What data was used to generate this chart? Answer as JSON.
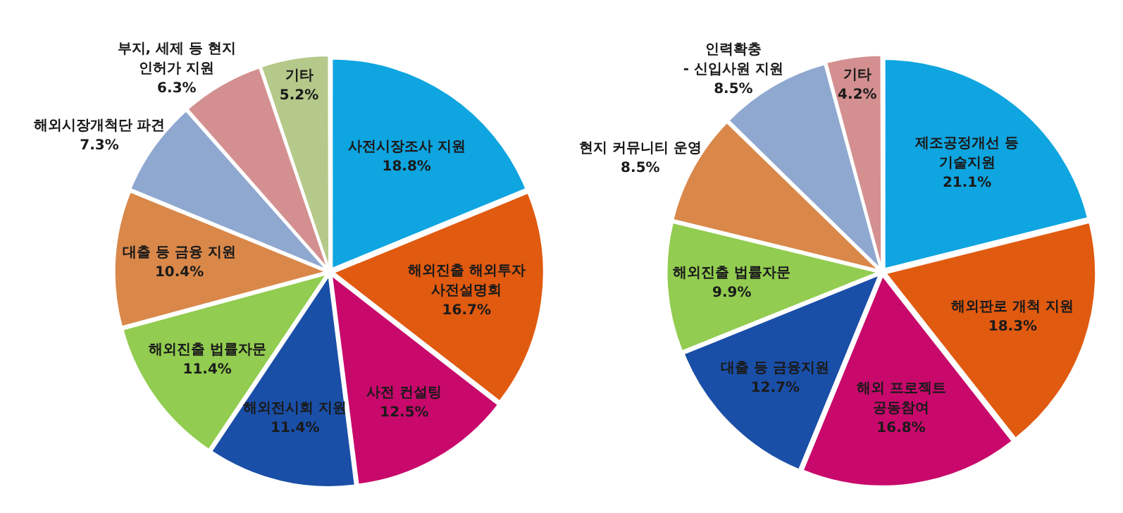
{
  "chart_data": [
    {
      "type": "pie",
      "categories": [
        "사전시장조사 지원",
        "해외진출 해외투자\n사전설명회",
        "사전 컨설팅",
        "해외전시회 지원",
        "해외진출 법률자문",
        "대출 등 금융 지원",
        "해외시장개척단 파견",
        "부지, 세제 등 현지\n인허가 지원",
        "기타"
      ],
      "values": [
        18.8,
        16.7,
        12.5,
        11.4,
        11.4,
        10.4,
        7.3,
        6.3,
        5.2
      ],
      "value_labels": [
        "18.8%",
        "16.7%",
        "12.5%",
        "11.4%",
        "11.4%",
        "10.4%",
        "7.3%",
        "6.3%",
        "5.2%"
      ],
      "colors": [
        "#0ea5e0",
        "#e05a10",
        "#c8096b",
        "#1a4fa8",
        "#92cc50",
        "#d9884a",
        "#8fa8d0",
        "#d49090",
        "#b5c98a"
      ],
      "legend": false
    },
    {
      "type": "pie",
      "categories": [
        "제조공정개선 등\n기술지원",
        "해외판로 개척 지원",
        "해외 프로젝트\n공동참여",
        "대출 등 금융지원",
        "해외진출 법률자문",
        "현지 커뮤니티 운영",
        "인력확충\n- 신입사원 지원",
        "기타"
      ],
      "values": [
        21.1,
        18.3,
        16.8,
        12.7,
        9.9,
        8.5,
        8.5,
        4.2
      ],
      "value_labels": [
        "21.1%",
        "18.3%",
        "16.8%",
        "12.7%",
        "9.9%",
        "8.5%",
        "8.5%",
        "4.2%"
      ],
      "colors": [
        "#0ea5e0",
        "#e05a10",
        "#c8096b",
        "#1a4fa8",
        "#92cc50",
        "#d9884a",
        "#8fa8d0",
        "#d49090"
      ],
      "legend": false
    }
  ]
}
